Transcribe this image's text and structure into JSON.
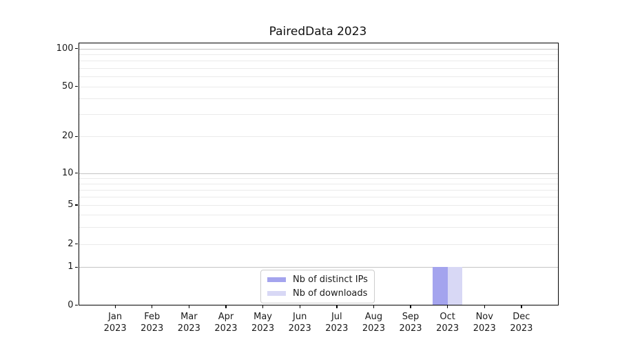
{
  "figure": {
    "title": "PairedData 2023"
  },
  "chart_data": {
    "type": "bar",
    "title": "PairedData 2023",
    "categories": [
      "Jan 2023",
      "Feb 2023",
      "Mar 2023",
      "Apr 2023",
      "May 2023",
      "Jun 2023",
      "Jul 2023",
      "Aug 2023",
      "Sep 2023",
      "Oct 2023",
      "Nov 2023",
      "Dec 2023"
    ],
    "x_tick_months": [
      "Jan",
      "Feb",
      "Mar",
      "Apr",
      "May",
      "Jun",
      "Jul",
      "Aug",
      "Sep",
      "Oct",
      "Nov",
      "Dec"
    ],
    "x_tick_year": "2023",
    "series": [
      {
        "name": "Nb of distinct IPs",
        "color": "#a4a4ee",
        "values": [
          0,
          0,
          0,
          0,
          0,
          0,
          0,
          0,
          0,
          1,
          0,
          0
        ]
      },
      {
        "name": "Nb of downloads",
        "color": "#d8d8f5",
        "values": [
          0,
          0,
          0,
          0,
          0,
          0,
          0,
          0,
          0,
          1,
          0,
          0
        ]
      }
    ],
    "xlabel": "",
    "ylabel": "",
    "yscale": "symlog",
    "ylim": [
      0,
      110
    ],
    "y_ticks_labeled": [
      0,
      1,
      2,
      5,
      10,
      20,
      50,
      100
    ],
    "y_major_gridlines": [
      1,
      10,
      100
    ],
    "y_minor_gridlines": [
      2,
      3,
      4,
      5,
      6,
      7,
      8,
      9,
      20,
      30,
      40,
      50,
      60,
      70,
      80,
      90
    ],
    "grid": true,
    "legend_position": "lower center"
  },
  "colors": {
    "bar_distinct_ips": "#a4a4ee",
    "bar_downloads": "#d8d8f5",
    "major_grid": "#c3c3c3",
    "minor_grid": "#eaeaea",
    "spine": "#000000",
    "text": "#1a1a1a",
    "legend_border": "#cccccc",
    "background": "#ffffff"
  }
}
